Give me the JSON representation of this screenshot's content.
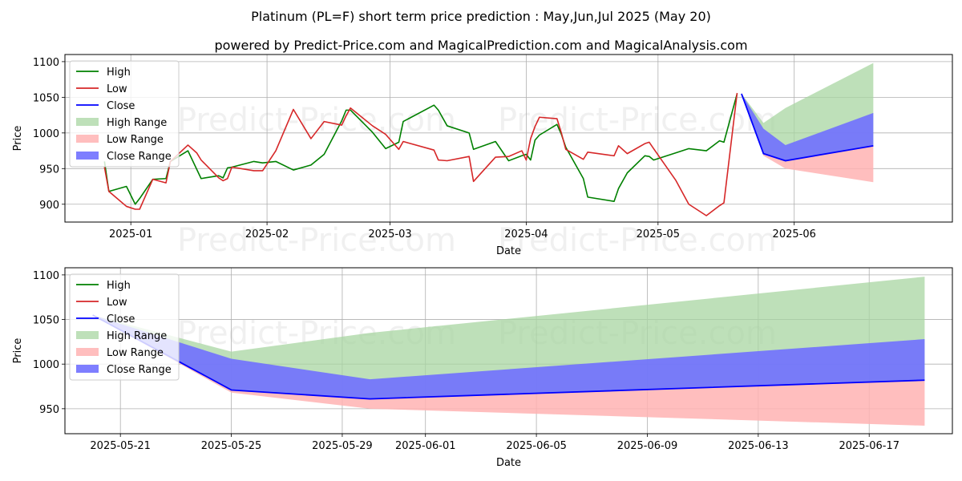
{
  "header": {
    "title": "Platinum (PL=F) short term price prediction : May,Jun,Jul 2025 (May 20)",
    "subtitle": "powered by Predict-Price.com and MagicalPrediction.com and MagicalAnalysis.com"
  },
  "watermark": "Predict-Price.com",
  "colors": {
    "high": "#008000",
    "low": "#d62728",
    "close": "#0000ff",
    "high_range": "#a8d5a2",
    "low_range": "#ffb3b3",
    "close_range": "#7070ff",
    "grid": "#b0b0b0"
  },
  "chart_data": [
    {
      "type": "line",
      "xlabel": "Date",
      "ylabel": "Price",
      "xlim": [
        "2024-12-17",
        "2025-07-07"
      ],
      "ylim": [
        875,
        1110
      ],
      "x_ticks": [
        {
          "date": "2025-01-01",
          "label": "2025-01"
        },
        {
          "date": "2025-02-01",
          "label": "2025-02"
        },
        {
          "date": "2025-03-01",
          "label": "2025-03"
        },
        {
          "date": "2025-04-01",
          "label": "2025-04"
        },
        {
          "date": "2025-05-01",
          "label": "2025-05"
        },
        {
          "date": "2025-06-01",
          "label": "2025-06"
        }
      ],
      "y_ticks": [
        900,
        950,
        1000,
        1050,
        1100
      ],
      "grid": true,
      "legend_position": "top-left",
      "legend": [
        "High",
        "Low",
        "Close",
        "High Range",
        "Low Range",
        "Close Range"
      ],
      "series": [
        {
          "name": "High",
          "x": [
            "2024-12-26",
            "2024-12-27",
            "2024-12-31",
            "2025-01-02",
            "2025-01-03",
            "2025-01-06",
            "2025-01-09",
            "2025-01-10",
            "2025-01-14",
            "2025-01-17",
            "2025-01-21",
            "2025-01-22",
            "2025-01-23",
            "2025-01-24",
            "2025-01-29",
            "2025-01-31",
            "2025-02-03",
            "2025-02-07",
            "2025-02-11",
            "2025-02-14",
            "2025-02-18",
            "2025-02-19",
            "2025-02-20",
            "2025-02-25",
            "2025-02-28",
            "2025-03-03",
            "2025-03-04",
            "2025-03-11",
            "2025-03-12",
            "2025-03-14",
            "2025-03-19",
            "2025-03-20",
            "2025-03-25",
            "2025-03-28",
            "2025-03-31",
            "2025-04-01",
            "2025-04-02",
            "2025-04-03",
            "2025-04-04",
            "2025-04-08",
            "2025-04-09",
            "2025-04-10",
            "2025-04-14",
            "2025-04-15",
            "2025-04-21",
            "2025-04-22",
            "2025-04-24",
            "2025-04-28",
            "2025-04-29",
            "2025-04-30",
            "2025-05-05",
            "2025-05-08",
            "2025-05-12",
            "2025-05-15",
            "2025-05-16",
            "2025-05-19"
          ],
          "values": [
            960,
            918,
            925,
            900,
            908,
            935,
            936,
            960,
            975,
            936,
            940,
            937,
            951,
            952,
            960,
            958,
            960,
            948,
            955,
            970,
            1017,
            1032,
            1032,
            1001,
            978,
            987,
            1016,
            1039,
            1032,
            1010,
            1000,
            977,
            988,
            961,
            968,
            970,
            962,
            990,
            997,
            1012,
            998,
            980,
            936,
            910,
            904,
            922,
            944,
            968,
            967,
            962,
            972,
            978,
            975,
            989,
            987,
            1055
          ]
        },
        {
          "name": "Low",
          "x": [
            "2024-12-26",
            "2024-12-27",
            "2024-12-31",
            "2025-01-02",
            "2025-01-03",
            "2025-01-06",
            "2025-01-09",
            "2025-01-10",
            "2025-01-14",
            "2025-01-16",
            "2025-01-17",
            "2025-01-21",
            "2025-01-22",
            "2025-01-23",
            "2025-01-24",
            "2025-01-29",
            "2025-01-31",
            "2025-02-03",
            "2025-02-07",
            "2025-02-11",
            "2025-02-14",
            "2025-02-18",
            "2025-02-19",
            "2025-02-20",
            "2025-02-25",
            "2025-02-28",
            "2025-03-03",
            "2025-03-04",
            "2025-03-11",
            "2025-03-12",
            "2025-03-14",
            "2025-03-19",
            "2025-03-20",
            "2025-03-25",
            "2025-03-28",
            "2025-03-31",
            "2025-04-01",
            "2025-04-02",
            "2025-04-03",
            "2025-04-04",
            "2025-04-08",
            "2025-04-09",
            "2025-04-10",
            "2025-04-14",
            "2025-04-15",
            "2025-04-21",
            "2025-04-22",
            "2025-04-24",
            "2025-04-28",
            "2025-04-29",
            "2025-04-30",
            "2025-05-05",
            "2025-05-08",
            "2025-05-12",
            "2025-05-15",
            "2025-05-16",
            "2025-05-19"
          ],
          "values": [
            952,
            918,
            897,
            893,
            893,
            935,
            930,
            960,
            983,
            972,
            962,
            937,
            933,
            936,
            952,
            947,
            947,
            975,
            1033,
            992,
            1016,
            1011,
            1024,
            1035,
            1010,
            998,
            977,
            988,
            976,
            962,
            961,
            967,
            932,
            966,
            967,
            975,
            962,
            992,
            1009,
            1022,
            1020,
            1000,
            977,
            963,
            973,
            968,
            982,
            971,
            985,
            987,
            978,
            934,
            900,
            884,
            898,
            902,
            1056
          ]
        }
      ]
    },
    {
      "type": "area",
      "xlabel": "Date",
      "ylabel": "Price",
      "xlim": [
        "2025-05-19",
        "2025-06-20"
      ],
      "ylim": [
        922,
        1108
      ],
      "x_ticks": [
        {
          "date": "2025-05-21",
          "label": "2025-05-21"
        },
        {
          "date": "2025-05-25",
          "label": "2025-05-25"
        },
        {
          "date": "2025-05-29",
          "label": "2025-05-29"
        },
        {
          "date": "2025-06-01",
          "label": "2025-06-01"
        },
        {
          "date": "2025-06-05",
          "label": "2025-06-05"
        },
        {
          "date": "2025-06-09",
          "label": "2025-06-09"
        },
        {
          "date": "2025-06-13",
          "label": "2025-06-13"
        },
        {
          "date": "2025-06-17",
          "label": "2025-06-17"
        }
      ],
      "y_ticks": [
        950,
        1000,
        1050,
        1100
      ],
      "grid": true,
      "legend_position": "top-left",
      "legend": [
        "High",
        "Low",
        "Close",
        "High Range",
        "Low Range",
        "Close Range"
      ],
      "forecast": {
        "x": [
          "2025-05-20",
          "2025-05-25",
          "2025-05-30",
          "2025-06-19"
        ],
        "close": [
          1055,
          971,
          961,
          982
        ],
        "high_upper": [
          1055,
          1014,
          1035,
          1098
        ],
        "close_upper": [
          1055,
          1006,
          983,
          1028
        ],
        "low_lower": [
          1055,
          968,
          950,
          931
        ]
      }
    }
  ]
}
